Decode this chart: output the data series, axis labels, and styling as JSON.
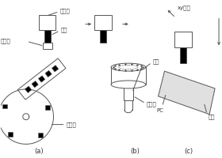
{
  "bg_color": "#ffffff",
  "line_color": "#555555",
  "label_color": "#333333",
  "figsize": [
    2.8,
    2.0
  ],
  "dpi": 100,
  "label_a_zhipiantou": "贴片头",
  "label_a_xizui": "吸嘴",
  "label_a_yuanjianpian": "元器件",
  "label_a_songliaoqi": "送料器",
  "label_b_guangyuan": "光源",
  "label_b_shexiangtou": "摄像头",
  "label_c_xymotion": "xy运动",
  "label_c_pc": "PC",
  "label_c_handian": "焊盘",
  "label_a": "(a)",
  "label_b": "(b)",
  "label_c": "(c)"
}
